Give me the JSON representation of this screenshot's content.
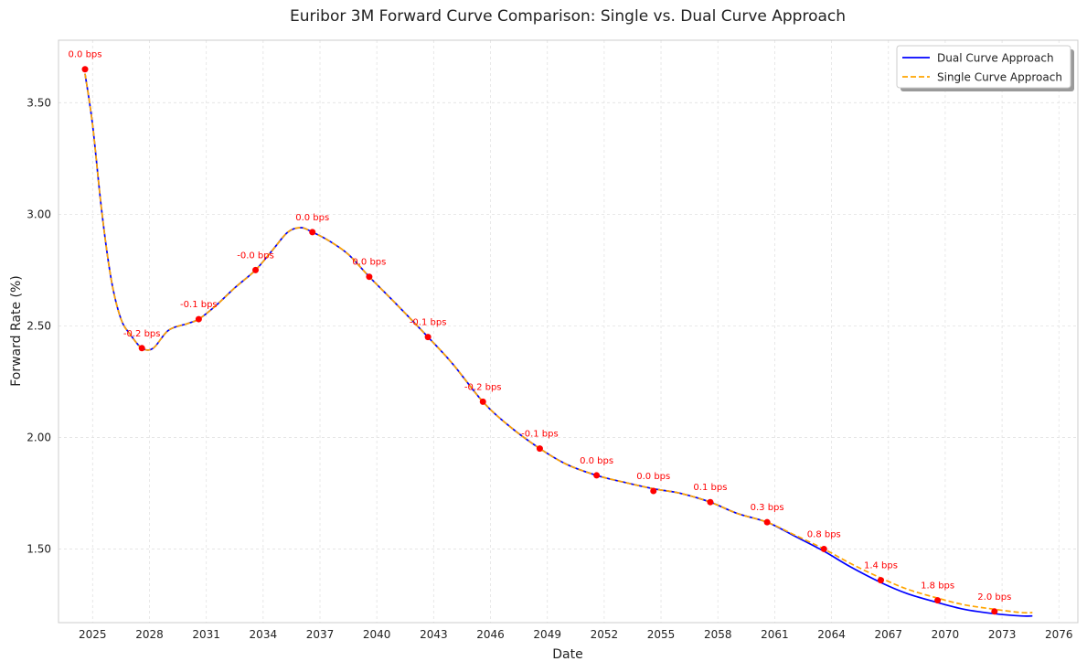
{
  "chart_data": {
    "type": "line",
    "title": "Euribor 3M Forward Curve Comparison: Single vs. Dual Curve Approach",
    "xlabel": "Date",
    "ylabel": "Forward Rate (%)",
    "xlim": [
      2023.2,
      2077.0
    ],
    "ylim": [
      1.17,
      3.78
    ],
    "x_ticks": [
      2025,
      2028,
      2031,
      2034,
      2037,
      2040,
      2043,
      2046,
      2049,
      2052,
      2055,
      2058,
      2061,
      2064,
      2067,
      2070,
      2073,
      2076
    ],
    "y_ticks": [
      1.5,
      2.0,
      2.5,
      3.0,
      3.5
    ],
    "y_tick_labels": [
      "1.50",
      "2.00",
      "2.50",
      "3.00",
      "3.50"
    ],
    "grid": true,
    "legend_position": "top-right",
    "series": [
      {
        "name": "Dual Curve Approach",
        "color": "#0000ff",
        "style": "solid",
        "x": [
          2024.6,
          2025.0,
          2025.5,
          2026.0,
          2026.5,
          2027.0,
          2027.6,
          2028.2,
          2029.0,
          2030.0,
          2030.6,
          2031.5,
          2032.5,
          2033.6,
          2034.5,
          2035.3,
          2036.0,
          2036.6,
          2037.5,
          2038.5,
          2039.6,
          2041.0,
          2042.7,
          2044.0,
          2045.6,
          2047.0,
          2048.6,
          2050.0,
          2051.6,
          2053.0,
          2054.6,
          2056.0,
          2057.6,
          2059.0,
          2060.6,
          2062.0,
          2063.6,
          2065.0,
          2066.6,
          2068.0,
          2069.6,
          2071.0,
          2072.6,
          2074.0,
          2074.6
        ],
        "y": [
          3.63,
          3.4,
          3.0,
          2.7,
          2.53,
          2.46,
          2.4,
          2.4,
          2.48,
          2.51,
          2.53,
          2.59,
          2.67,
          2.75,
          2.84,
          2.92,
          2.94,
          2.92,
          2.88,
          2.82,
          2.72,
          2.6,
          2.45,
          2.33,
          2.16,
          2.05,
          1.95,
          1.88,
          1.83,
          1.8,
          1.77,
          1.75,
          1.71,
          1.66,
          1.62,
          1.56,
          1.49,
          1.42,
          1.35,
          1.3,
          1.26,
          1.23,
          1.21,
          1.2,
          1.2
        ]
      },
      {
        "name": "Single Curve Approach",
        "color": "#ffa500",
        "style": "dashed",
        "x": [
          2024.6,
          2025.0,
          2025.5,
          2026.0,
          2026.5,
          2027.0,
          2027.6,
          2028.2,
          2029.0,
          2030.0,
          2030.6,
          2031.5,
          2032.5,
          2033.6,
          2034.5,
          2035.3,
          2036.0,
          2036.6,
          2037.5,
          2038.5,
          2039.6,
          2041.0,
          2042.7,
          2044.0,
          2045.6,
          2047.0,
          2048.6,
          2050.0,
          2051.6,
          2053.0,
          2054.6,
          2056.0,
          2057.6,
          2059.0,
          2060.6,
          2062.0,
          2063.6,
          2065.0,
          2066.6,
          2068.0,
          2069.6,
          2071.0,
          2072.6,
          2074.0,
          2074.6
        ],
        "y": [
          3.63,
          3.4,
          3.0,
          2.7,
          2.53,
          2.46,
          2.4,
          2.4,
          2.48,
          2.51,
          2.53,
          2.59,
          2.67,
          2.75,
          2.84,
          2.92,
          2.94,
          2.92,
          2.88,
          2.82,
          2.72,
          2.6,
          2.45,
          2.33,
          2.16,
          2.05,
          1.95,
          1.88,
          1.83,
          1.8,
          1.77,
          1.75,
          1.71,
          1.66,
          1.62,
          1.565,
          1.5,
          1.435,
          1.37,
          1.32,
          1.28,
          1.25,
          1.23,
          1.215,
          1.215
        ]
      }
    ],
    "annotations": {
      "color": "#ff0000",
      "points": [
        {
          "x": 2024.6,
          "y": 3.65,
          "label": "0.0 bps"
        },
        {
          "x": 2027.6,
          "y": 2.4,
          "label": "-0.2 bps"
        },
        {
          "x": 2030.6,
          "y": 2.53,
          "label": "-0.1 bps"
        },
        {
          "x": 2033.6,
          "y": 2.75,
          "label": "-0.0 bps"
        },
        {
          "x": 2036.6,
          "y": 2.92,
          "label": "0.0 bps"
        },
        {
          "x": 2039.6,
          "y": 2.72,
          "label": "0.0 bps"
        },
        {
          "x": 2042.7,
          "y": 2.45,
          "label": "-0.1 bps"
        },
        {
          "x": 2045.6,
          "y": 2.16,
          "label": "-0.2 bps"
        },
        {
          "x": 2048.6,
          "y": 1.95,
          "label": "-0.1 bps"
        },
        {
          "x": 2051.6,
          "y": 1.83,
          "label": "0.0 bps"
        },
        {
          "x": 2054.6,
          "y": 1.76,
          "label": "0.0 bps"
        },
        {
          "x": 2057.6,
          "y": 1.71,
          "label": "0.1 bps"
        },
        {
          "x": 2060.6,
          "y": 1.62,
          "label": "0.3 bps"
        },
        {
          "x": 2063.6,
          "y": 1.5,
          "label": "0.8 bps"
        },
        {
          "x": 2066.6,
          "y": 1.36,
          "label": "1.4 bps"
        },
        {
          "x": 2069.6,
          "y": 1.27,
          "label": "1.8 bps"
        },
        {
          "x": 2072.6,
          "y": 1.22,
          "label": "2.0 bps"
        }
      ]
    }
  }
}
